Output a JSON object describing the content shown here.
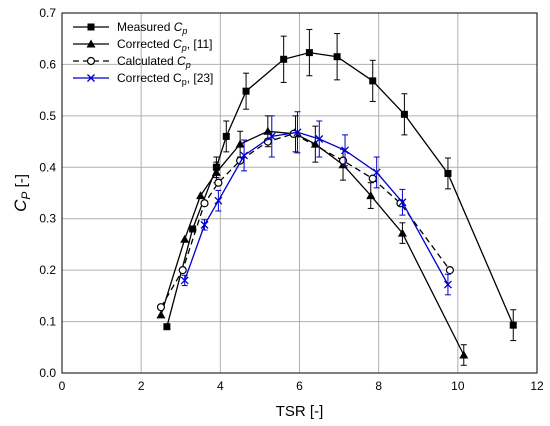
{
  "chart_data": {
    "type": "line",
    "xlabel": "TSR [-]",
    "ylabel_main": "C",
    "ylabel_sub": "P",
    "ylabel_suffix": " [-]",
    "xlim": [
      0,
      12
    ],
    "ylim": [
      0,
      0.7
    ],
    "xticks": [
      0,
      2,
      4,
      6,
      8,
      10,
      12
    ],
    "yticks": [
      0.0,
      0.1,
      0.2,
      0.3,
      0.4,
      0.5,
      0.6,
      0.7
    ],
    "grid": true,
    "legend_position": "top-left",
    "series": [
      {
        "name": "Measured Cp",
        "legend_main": "Measured ",
        "legend_italic": "C",
        "legend_sub": "p",
        "legend_tail": "",
        "color": "#000000",
        "marker": "square",
        "dashed": false,
        "x": [
          2.65,
          3.3,
          3.9,
          4.15,
          4.65,
          5.6,
          6.25,
          6.95,
          7.85,
          8.65,
          9.75,
          11.4
        ],
        "y": [
          0.09,
          0.28,
          0.4,
          0.46,
          0.548,
          0.61,
          0.623,
          0.615,
          0.568,
          0.503,
          0.388,
          0.093
        ],
        "err": [
          0,
          0,
          0.02,
          0.03,
          0.035,
          0.045,
          0.045,
          0.045,
          0.04,
          0.04,
          0.03,
          0.03
        ]
      },
      {
        "name": "Corrected Cp, [11]",
        "legend_main": "Corrected ",
        "legend_italic": "C",
        "legend_sub": "p",
        "legend_tail": ", [11]",
        "color": "#000000",
        "marker": "triangle",
        "dashed": false,
        "x": [
          2.5,
          3.1,
          3.5,
          3.9,
          4.5,
          5.2,
          5.9,
          6.4,
          7.1,
          7.8,
          8.6,
          10.15
        ],
        "y": [
          0.113,
          0.26,
          0.345,
          0.39,
          0.445,
          0.47,
          0.465,
          0.445,
          0.405,
          0.345,
          0.272,
          0.035
        ],
        "err": [
          0,
          0,
          0,
          0.02,
          0.025,
          0.03,
          0.035,
          0.035,
          0.03,
          0.025,
          0.02,
          0.02
        ]
      },
      {
        "name": "Calculated Cp",
        "legend_main": "Calculated ",
        "legend_italic": "C",
        "legend_sub": "p",
        "legend_tail": "",
        "color": "#000000",
        "marker": "circle",
        "dashed": true,
        "x": [
          2.5,
          3.05,
          3.6,
          3.95,
          4.5,
          5.2,
          5.85,
          7.1,
          7.85,
          8.55,
          9.8
        ],
        "y": [
          0.128,
          0.2,
          0.33,
          0.37,
          0.413,
          0.45,
          0.465,
          0.413,
          0.378,
          0.33,
          0.2
        ],
        "err": [
          0,
          0,
          0,
          0,
          0,
          0,
          0,
          0,
          0,
          0,
          0
        ]
      },
      {
        "name": "Corrected Cp, [23]",
        "legend_main": "Corrected C",
        "legend_italic": "",
        "legend_sub": "p",
        "legend_tail": ", [23]",
        "color": "#0000cc",
        "marker": "x",
        "dashed": false,
        "x": [
          3.1,
          3.6,
          3.95,
          4.6,
          5.3,
          5.95,
          6.5,
          7.15,
          7.95,
          8.6,
          9.75
        ],
        "y": [
          0.18,
          0.288,
          0.335,
          0.423,
          0.46,
          0.468,
          0.455,
          0.433,
          0.39,
          0.332,
          0.172
        ],
        "err": [
          0.01,
          0.01,
          0.02,
          0.03,
          0.04,
          0.04,
          0.035,
          0.03,
          0.03,
          0.025,
          0.02
        ]
      }
    ]
  }
}
